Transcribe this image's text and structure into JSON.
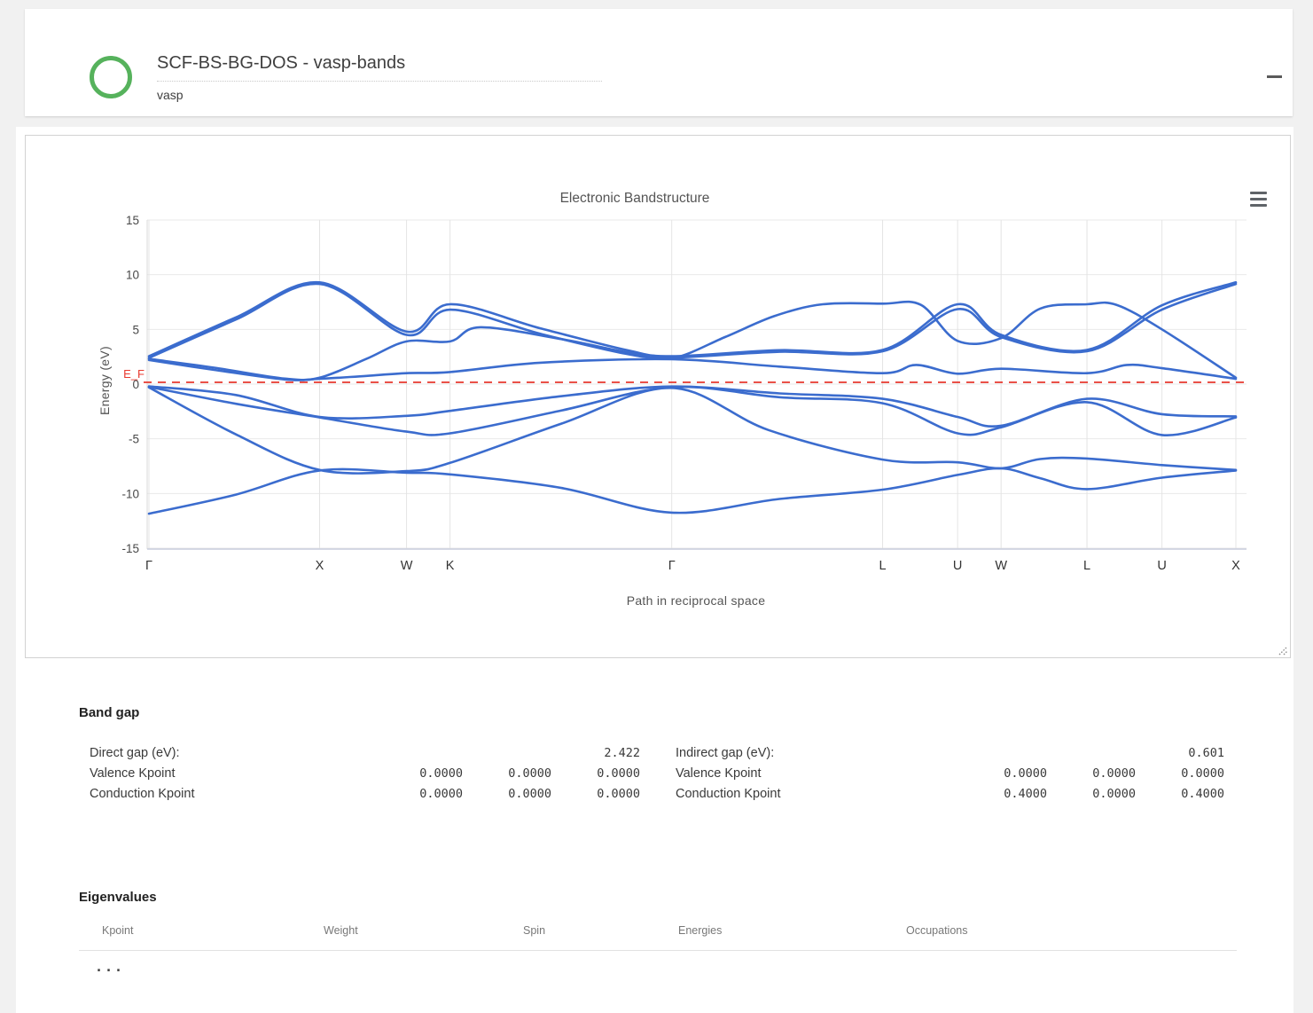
{
  "header": {
    "title": "SCF-BS-BG-DOS - vasp-bands",
    "subtitle": "vasp"
  },
  "icons": {
    "status": "green-circle-outline",
    "minimize": "minus-bar",
    "chart_menu": "hamburger",
    "resize": "diagonal-grip"
  },
  "colors": {
    "accent_green": "#56b25c",
    "band_blue": "#3b6cce",
    "fermi_red": "#e8392f"
  },
  "chart_data": {
    "type": "line",
    "title": "Electronic Bandstructure",
    "xlabel": "Path in reciprocal space",
    "ylabel": "Energy (eV)",
    "ylim": [
      -15,
      15
    ],
    "yticks": [
      -15,
      -10,
      -5,
      0,
      5,
      10,
      15
    ],
    "grid": true,
    "kpath_labels": [
      "Γ",
      "X",
      "W",
      "K",
      "Γ",
      "L",
      "U",
      "W",
      "L",
      "U",
      "X"
    ],
    "kpath_positions": [
      0,
      0.157,
      0.237,
      0.277,
      0.481,
      0.675,
      0.744,
      0.784,
      0.863,
      0.932,
      1
    ],
    "fermi_level": {
      "label": "E_F",
      "energy": 0
    },
    "band_color": "#3b6cce",
    "bands": [
      [
        [
          0,
          -11.85
        ],
        [
          0.08,
          -10.1
        ],
        [
          0.157,
          -7.9
        ],
        [
          0.237,
          -8.1
        ],
        [
          0.277,
          -8.25
        ],
        [
          0.38,
          -9.5
        ],
        [
          0.481,
          -11.75
        ],
        [
          0.58,
          -10.5
        ],
        [
          0.675,
          -9.65
        ],
        [
          0.744,
          -8.3
        ],
        [
          0.784,
          -7.7
        ],
        [
          0.82,
          -8.6
        ],
        [
          0.863,
          -9.6
        ],
        [
          0.932,
          -8.55
        ],
        [
          1,
          -7.9
        ]
      ],
      [
        [
          0,
          -0.3
        ],
        [
          0.08,
          -4.6
        ],
        [
          0.157,
          -7.85
        ],
        [
          0.237,
          -7.95
        ],
        [
          0.277,
          -7.2
        ],
        [
          0.38,
          -3.6
        ],
        [
          0.481,
          -0.35
        ],
        [
          0.57,
          -4.2
        ],
        [
          0.675,
          -6.9
        ],
        [
          0.744,
          -7.15
        ],
        [
          0.784,
          -7.7
        ],
        [
          0.82,
          -6.85
        ],
        [
          0.863,
          -6.8
        ],
        [
          0.932,
          -7.4
        ],
        [
          1,
          -7.85
        ]
      ],
      [
        [
          0,
          -0.25
        ],
        [
          0.08,
          -1.8
        ],
        [
          0.157,
          -3.05
        ],
        [
          0.237,
          -4.35
        ],
        [
          0.277,
          -4.5
        ],
        [
          0.38,
          -2.4
        ],
        [
          0.481,
          -0.28
        ],
        [
          0.58,
          -1.2
        ],
        [
          0.675,
          -1.75
        ],
        [
          0.744,
          -4.5
        ],
        [
          0.784,
          -3.95
        ],
        [
          0.863,
          -1.65
        ],
        [
          0.932,
          -4.65
        ],
        [
          1,
          -3.05
        ]
      ],
      [
        [
          0,
          -0.2
        ],
        [
          0.08,
          -1.0
        ],
        [
          0.157,
          -3.0
        ],
        [
          0.237,
          -2.9
        ],
        [
          0.277,
          -2.45
        ],
        [
          0.38,
          -1.1
        ],
        [
          0.481,
          -0.22
        ],
        [
          0.58,
          -0.85
        ],
        [
          0.675,
          -1.35
        ],
        [
          0.744,
          -3.0
        ],
        [
          0.784,
          -3.8
        ],
        [
          0.863,
          -1.35
        ],
        [
          0.932,
          -2.75
        ],
        [
          1,
          -2.95
        ]
      ],
      [
        [
          0,
          2.2
        ],
        [
          0.06,
          1.3
        ],
        [
          0.125,
          0.42
        ],
        [
          0.157,
          0.48
        ],
        [
          0.2,
          0.75
        ],
        [
          0.237,
          1.0
        ],
        [
          0.277,
          1.1
        ],
        [
          0.36,
          1.95
        ],
        [
          0.481,
          2.27
        ],
        [
          0.58,
          1.6
        ],
        [
          0.675,
          1.0
        ],
        [
          0.706,
          1.75
        ],
        [
          0.744,
          0.95
        ],
        [
          0.784,
          1.4
        ],
        [
          0.863,
          1.0
        ],
        [
          0.9,
          1.75
        ],
        [
          0.932,
          1.45
        ],
        [
          1,
          0.48
        ]
      ],
      [
        [
          0,
          2.3
        ],
        [
          0.06,
          1.5
        ],
        [
          0.125,
          0.5
        ],
        [
          0.157,
          0.58
        ],
        [
          0.2,
          2.3
        ],
        [
          0.237,
          3.9
        ],
        [
          0.277,
          3.9
        ],
        [
          0.305,
          5.2
        ],
        [
          0.38,
          4.1
        ],
        [
          0.44,
          2.9
        ],
        [
          0.481,
          2.35
        ],
        [
          0.53,
          4.3
        ],
        [
          0.575,
          6.2
        ],
        [
          0.62,
          7.3
        ],
        [
          0.675,
          7.35
        ],
        [
          0.71,
          7.25
        ],
        [
          0.744,
          3.95
        ],
        [
          0.784,
          4.2
        ],
        [
          0.82,
          6.9
        ],
        [
          0.863,
          7.3
        ],
        [
          0.89,
          7.25
        ],
        [
          0.932,
          5.0
        ],
        [
          1,
          0.58
        ]
      ],
      [
        [
          0,
          2.4
        ],
        [
          0.08,
          5.9
        ],
        [
          0.157,
          9.15
        ],
        [
          0.237,
          4.5
        ],
        [
          0.277,
          6.8
        ],
        [
          0.36,
          4.6
        ],
        [
          0.44,
          2.75
        ],
        [
          0.481,
          2.42
        ],
        [
          0.58,
          2.95
        ],
        [
          0.675,
          3.0
        ],
        [
          0.744,
          6.85
        ],
        [
          0.784,
          4.3
        ],
        [
          0.863,
          3.0
        ],
        [
          0.932,
          6.8
        ],
        [
          1,
          9.15
        ]
      ],
      [
        [
          0,
          2.55
        ],
        [
          0.08,
          6.1
        ],
        [
          0.157,
          9.3
        ],
        [
          0.237,
          4.8
        ],
        [
          0.277,
          7.3
        ],
        [
          0.36,
          5.1
        ],
        [
          0.44,
          3.1
        ],
        [
          0.481,
          2.55
        ],
        [
          0.58,
          3.1
        ],
        [
          0.675,
          3.12
        ],
        [
          0.744,
          7.3
        ],
        [
          0.784,
          4.5
        ],
        [
          0.863,
          3.12
        ],
        [
          0.932,
          7.2
        ],
        [
          1,
          9.3
        ]
      ]
    ]
  },
  "band_gap": {
    "heading": "Band gap",
    "direct": {
      "label": "Direct gap (eV):",
      "value": "2.422",
      "valence_label": "Valence Kpoint",
      "valence": [
        "0.0000",
        "0.0000",
        "0.0000"
      ],
      "conduction_label": "Conduction Kpoint",
      "conduction": [
        "0.0000",
        "0.0000",
        "0.0000"
      ]
    },
    "indirect": {
      "label": "Indirect gap (eV):",
      "value": "0.601",
      "valence_label": "Valence Kpoint",
      "valence": [
        "0.0000",
        "0.0000",
        "0.0000"
      ],
      "conduction_label": "Conduction Kpoint",
      "conduction": [
        "0.4000",
        "0.0000",
        "0.4000"
      ]
    }
  },
  "eigenvalues": {
    "heading": "Eigenvalues",
    "columns": [
      "Kpoint",
      "Weight",
      "Spin",
      "Energies",
      "Occupations"
    ],
    "placeholder": "..."
  }
}
